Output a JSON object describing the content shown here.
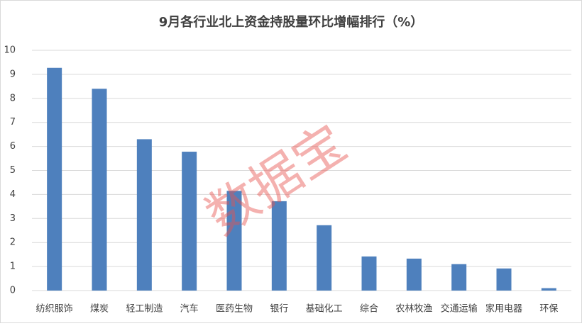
{
  "chart_data": {
    "type": "bar",
    "title": "9月各行业北上资金持股量环比增幅排行（%）",
    "categories": [
      "纺织服饰",
      "煤炭",
      "轻工制造",
      "汽车",
      "医药生物",
      "银行",
      "基础化工",
      "综合",
      "农林牧渔",
      "交通运输",
      "家用电器",
      "环保"
    ],
    "values": [
      9.27,
      8.4,
      6.3,
      5.78,
      4.15,
      3.72,
      2.72,
      1.42,
      1.33,
      1.1,
      0.92,
      0.1
    ],
    "color": "#4e80bd",
    "ylim": [
      0,
      10
    ],
    "yticks": [
      0,
      1,
      2,
      3,
      4,
      5,
      6,
      7,
      8,
      9,
      10
    ],
    "grid": true,
    "watermark": "数据宝"
  }
}
